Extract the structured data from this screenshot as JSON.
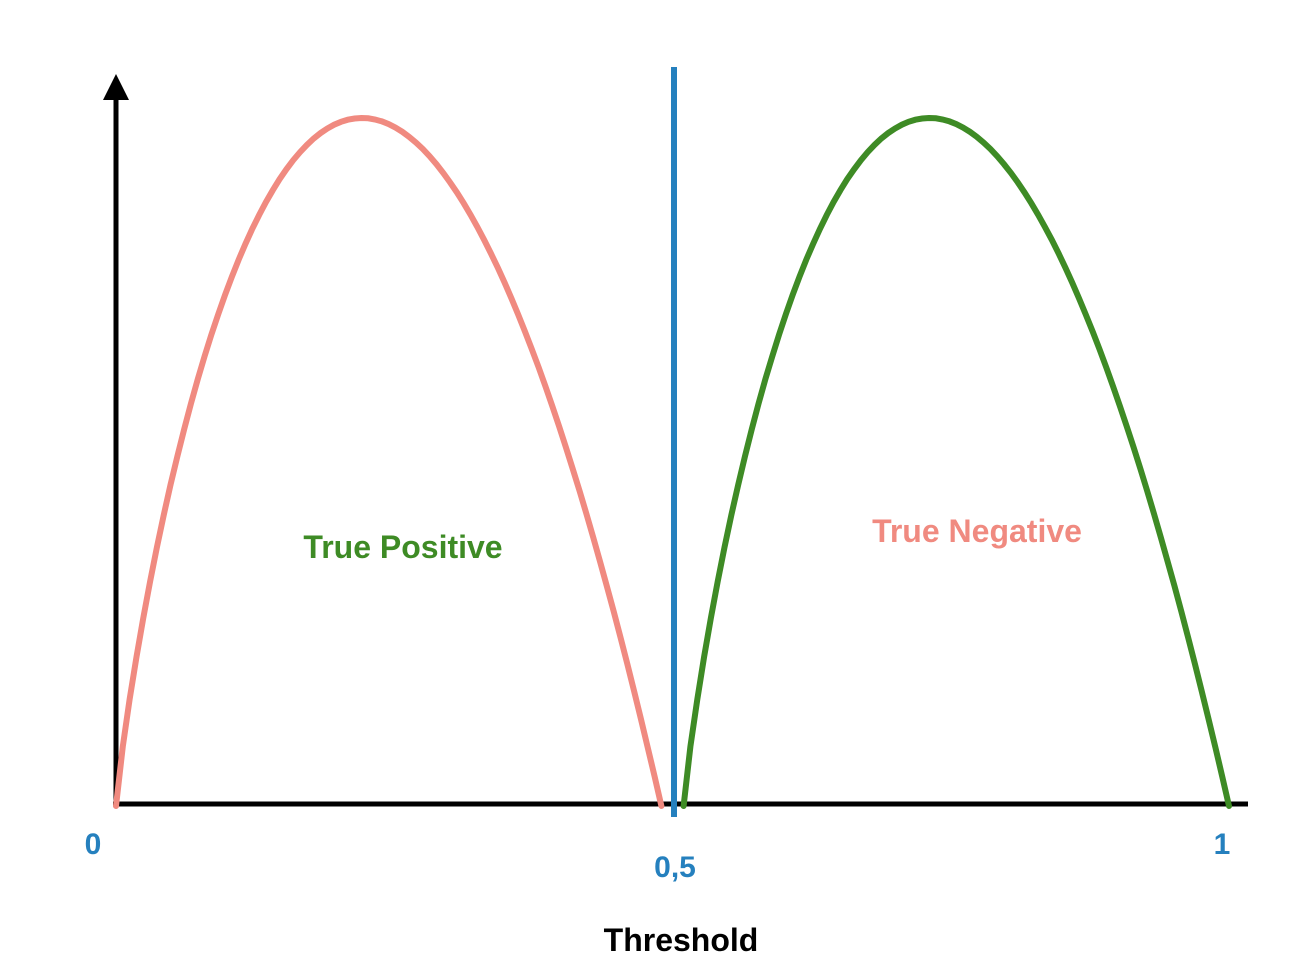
{
  "xlabel": "Threshold",
  "ticks": {
    "zero": "0",
    "half": "0,5",
    "one": "1"
  },
  "regions": {
    "left": "True Positive",
    "right": "True Negative"
  },
  "curves": [
    {
      "id": "left",
      "from": 0.0,
      "to": 0.49,
      "color": "#f08a80"
    },
    {
      "id": "right",
      "from": 0.51,
      "to": 1.0,
      "color": "#3e8b25"
    }
  ],
  "threshold": {
    "value": 0.5,
    "color": "#2580be"
  },
  "colors": {
    "axis": "#000000",
    "tick_labels": "#2580be",
    "left_label": "#3e8b25",
    "right_label": "#f08a80"
  }
}
